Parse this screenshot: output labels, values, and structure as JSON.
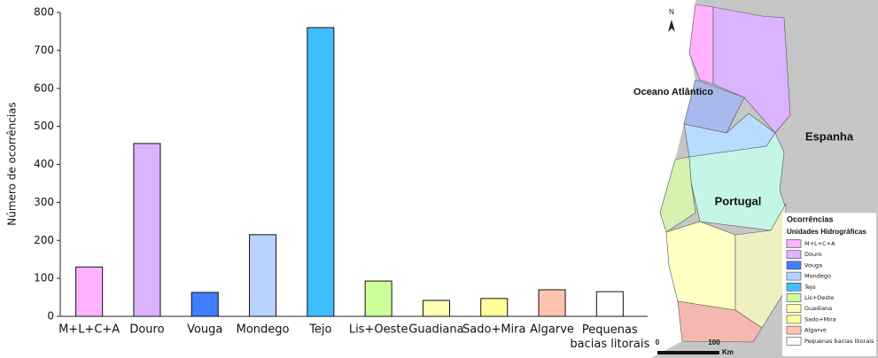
{
  "chart_data": {
    "type": "bar",
    "ylabel": "Número de ocorrências",
    "categories": [
      "M+L+C+A",
      "Douro",
      "Vouga",
      "Mondego",
      "Tejo",
      "Lis+Oeste",
      "Guadiana",
      "Sado+Mira",
      "Algarve",
      "Pequenas bacias litorais"
    ],
    "values": [
      130,
      455,
      63,
      215,
      760,
      93,
      42,
      47,
      70,
      65
    ],
    "colors": [
      "#ffb3ff",
      "#dbb3ff",
      "#3f7fff",
      "#b8d3ff",
      "#3fbfff",
      "#ccff99",
      "#ffffb3",
      "#ffff99",
      "#ffc4b0",
      "#ffffff"
    ],
    "ylim": [
      0,
      800
    ],
    "yticks": [
      0,
      100,
      200,
      300,
      400,
      500,
      600,
      700,
      800
    ],
    "grid": false
  },
  "map": {
    "north": "N",
    "ocean": "Oceano Atlântico",
    "spain": "Espanha",
    "portugal": "Portugal",
    "legend_title": "Ocorrências",
    "legend_subtitle": "Unidades Hidrográficas",
    "legend_items": [
      "M+L+C+A",
      "Douro",
      "Vouga",
      "Mondego",
      "Tejo",
      "Lis+Oeste",
      "Guadiana",
      "Sado+Mira",
      "Algarve",
      "Pequenas bacias litorais"
    ],
    "scale_start": "0",
    "scale_end": "100",
    "scale_unit": "Km"
  }
}
